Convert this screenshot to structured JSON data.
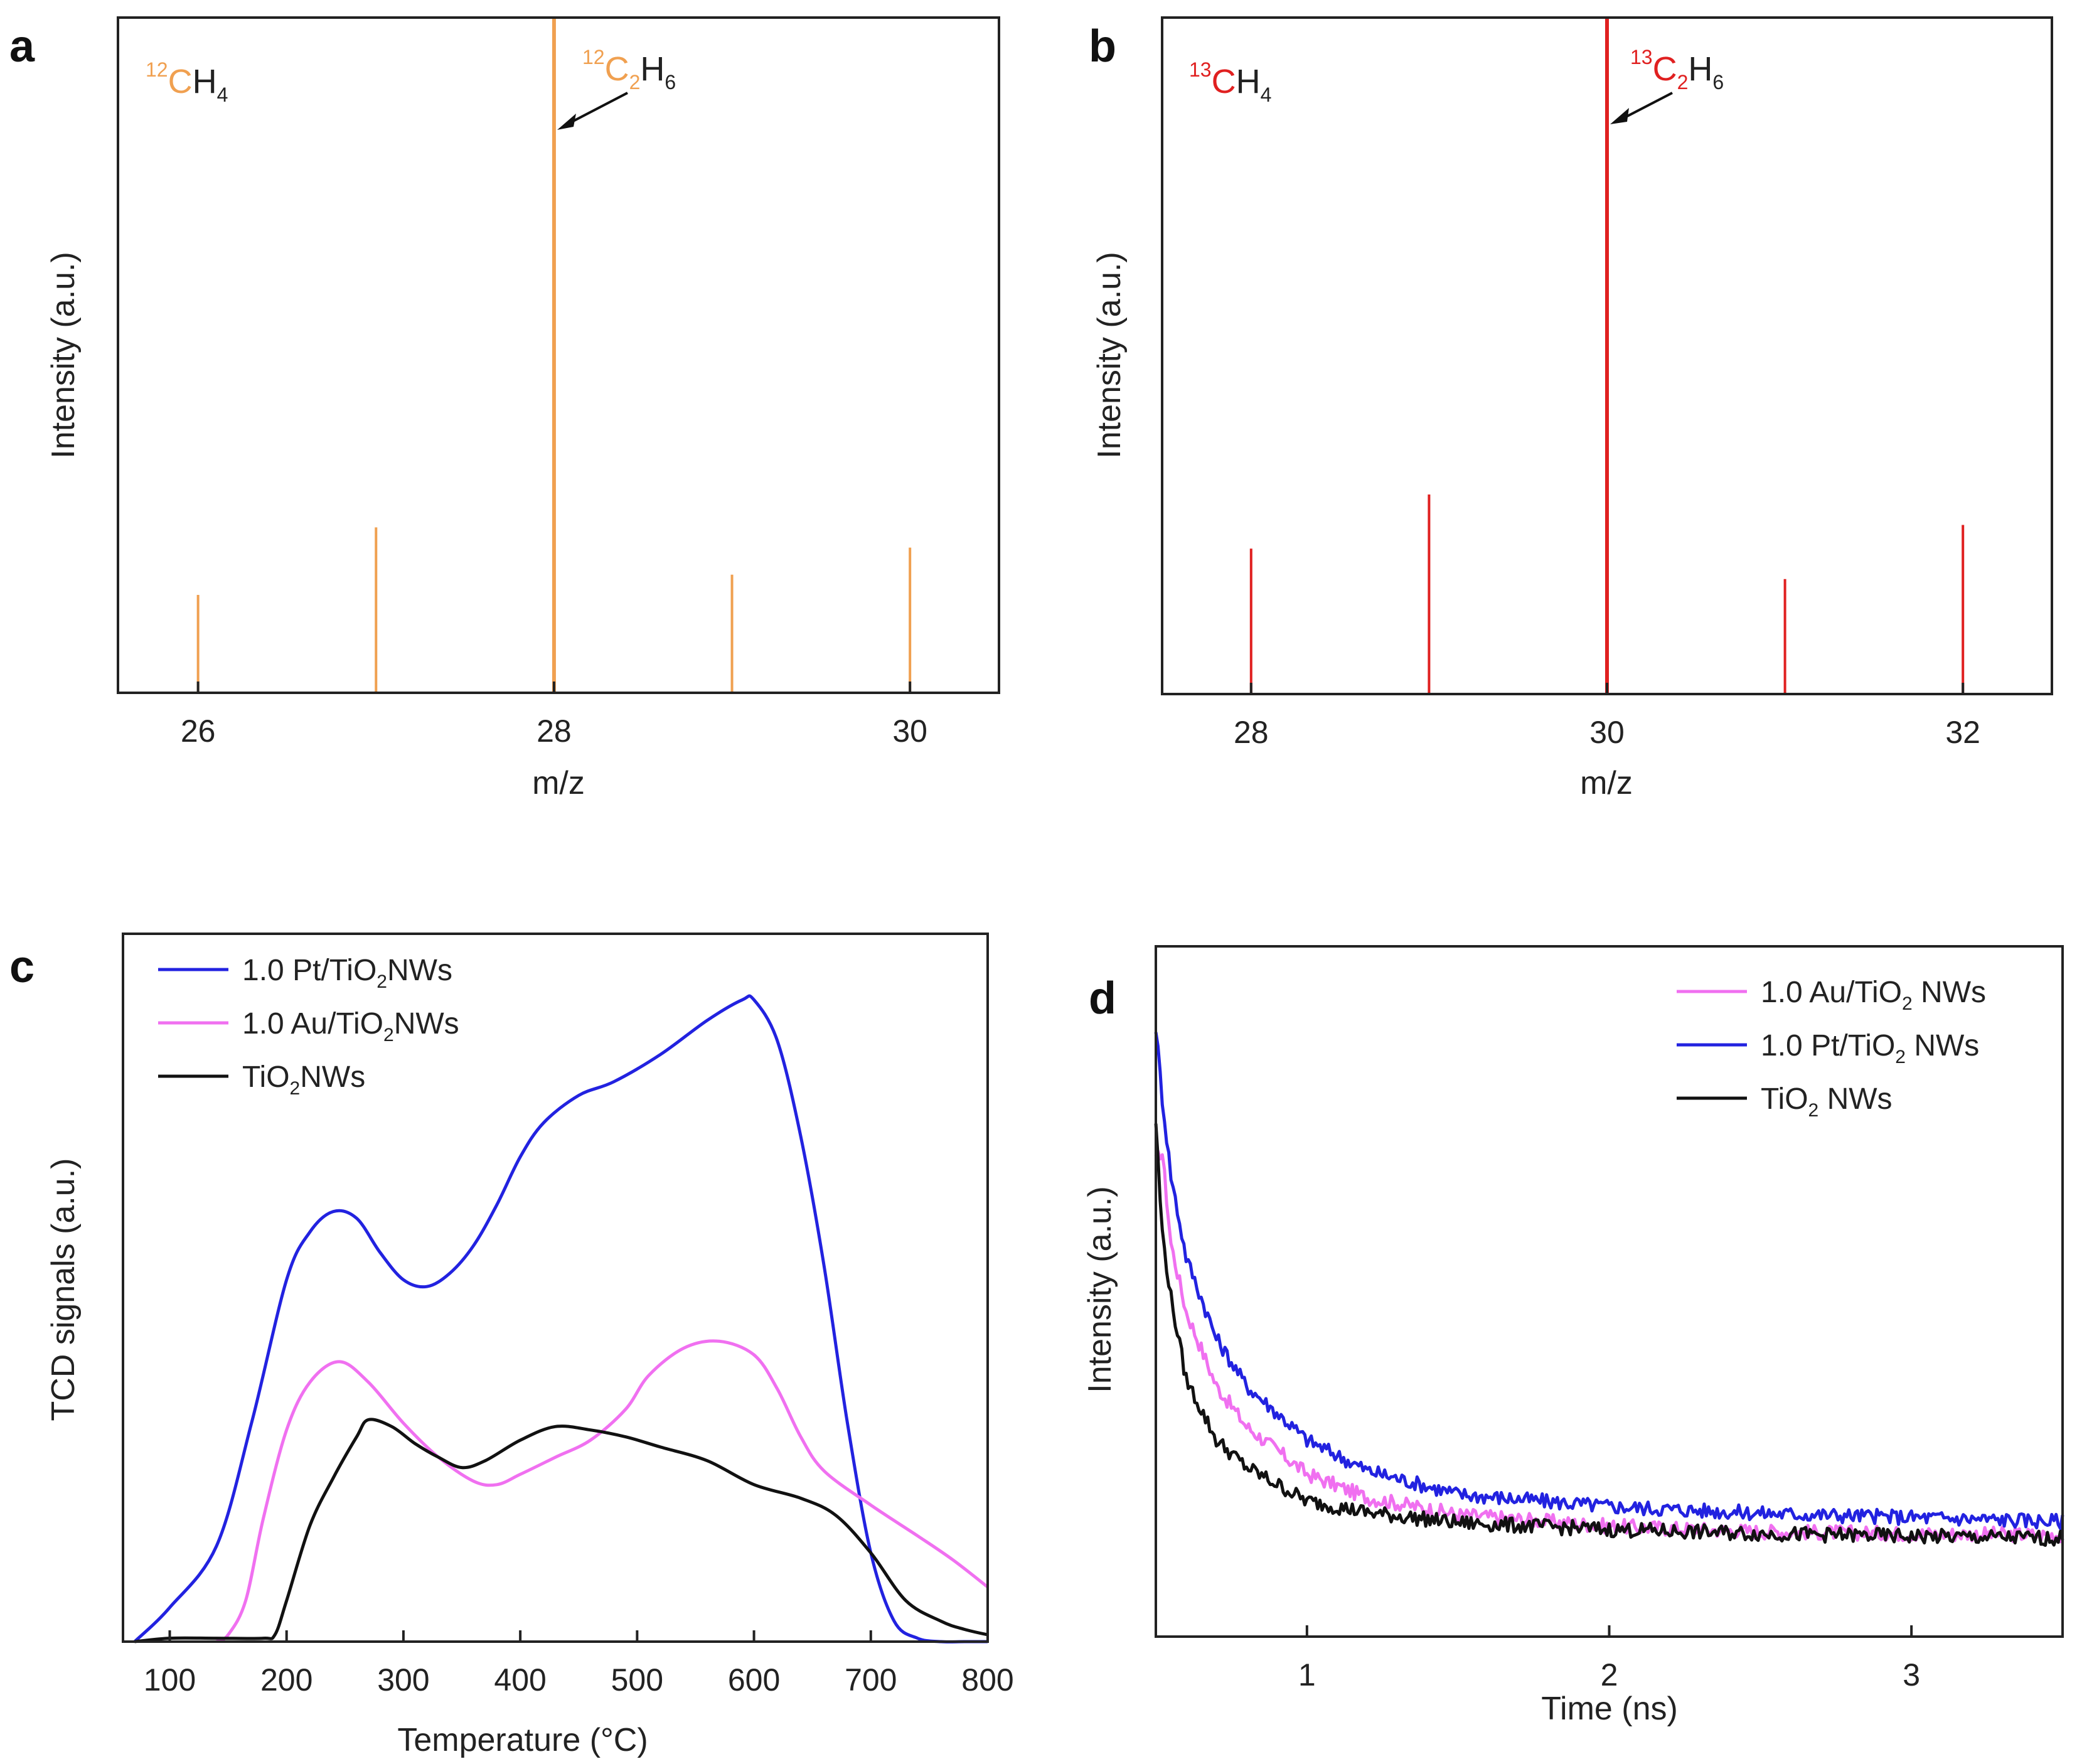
{
  "chart_data": [
    {
      "panel": "a",
      "type": "bar",
      "xlabel": "m/z",
      "ylabel": "Intensity (a.u.)",
      "xlim": [
        25.55,
        30.5
      ],
      "ylim": [
        0,
        100
      ],
      "xticks": [
        26,
        28,
        30
      ],
      "x": [
        26,
        27,
        28,
        29,
        30
      ],
      "values": [
        14.5,
        24.5,
        100,
        17.5,
        21.5
      ],
      "color": "#f0a050",
      "annotations": [
        {
          "id": "ch4",
          "isotope": "12",
          "base": "CH",
          "subscript": "4",
          "x": 26,
          "y": 90,
          "color_part": "12C"
        },
        {
          "id": "c2h6",
          "isotope": "12",
          "base": "C",
          "sub1": "2",
          "tail": "H",
          "sub2": "6",
          "arrow_to": [
            28,
            83
          ]
        }
      ]
    },
    {
      "panel": "b",
      "type": "bar",
      "xlabel": "m/z",
      "ylabel": "Intensity (a.u.)",
      "xlim": [
        27.5,
        32.5
      ],
      "ylim": [
        0,
        100
      ],
      "xticks": [
        28,
        30,
        32
      ],
      "x": [
        28,
        29,
        30,
        31,
        32
      ],
      "values": [
        21.5,
        29.5,
        100,
        17,
        25
      ],
      "color": "#e02020",
      "annotations": [
        {
          "id": "ch4",
          "isotope": "13",
          "base": "CH",
          "subscript": "4"
        },
        {
          "id": "c2h6",
          "isotope": "13",
          "base": "C",
          "sub1": "2",
          "tail": "H",
          "sub2": "6",
          "arrow_to": [
            30,
            84
          ]
        }
      ]
    },
    {
      "panel": "c",
      "type": "line",
      "xlabel": "Temperature (°C)",
      "ylabel": "TCD signals (a.u.)",
      "xlim": [
        60,
        800
      ],
      "ylim": [
        0,
        100
      ],
      "xticks": [
        100,
        200,
        300,
        400,
        500,
        600,
        700,
        800
      ],
      "legend_position": "top-left",
      "series": [
        {
          "name": "1.0 Pt/TiO2NWs",
          "base": "1.0 Pt/TiO",
          "sub": "2",
          "tail": "NWs",
          "color": "#2222e0",
          "x": [
            70,
            100,
            140,
            170,
            200,
            220,
            240,
            260,
            280,
            300,
            320,
            340,
            360,
            380,
            400,
            420,
            450,
            480,
            520,
            560,
            590,
            600,
            620,
            640,
            660,
            680,
            700,
            720,
            740,
            760,
            780,
            800
          ],
          "y": [
            0,
            5,
            14,
            32,
            53,
            60,
            63,
            62,
            57,
            53,
            52,
            54,
            58,
            64,
            71,
            76,
            80,
            82,
            86,
            91,
            94,
            94,
            88,
            74,
            55,
            32,
            13,
            3,
            0.5,
            0,
            0,
            0
          ]
        },
        {
          "name": "1.0 Au/TiO2NWs",
          "base": "1.0 Au/TiO",
          "sub": "2",
          "tail": "NWs",
          "color": "#f070f0",
          "x": [
            140,
            150,
            165,
            180,
            200,
            220,
            245,
            270,
            300,
            330,
            360,
            380,
            400,
            430,
            460,
            490,
            510,
            540,
            570,
            600,
            620,
            640,
            660,
            700,
            740,
            770,
            800
          ],
          "y": [
            0,
            1,
            6,
            18,
            31,
            38,
            41,
            38,
            32,
            27,
            23.5,
            23,
            24.5,
            27,
            29.5,
            34,
            39,
            43,
            44,
            42,
            37,
            30,
            25,
            20,
            15.5,
            12,
            8
          ]
        },
        {
          "name": "TiO2NWs",
          "base": "TiO",
          "sub": "2",
          "tail": "NWs",
          "color": "#111111",
          "x": [
            70,
            100,
            140,
            180,
            190,
            200,
            220,
            240,
            260,
            270,
            290,
            310,
            330,
            350,
            370,
            400,
            430,
            460,
            490,
            520,
            560,
            600,
            640,
            670,
            700,
            730,
            760,
            780,
            800
          ],
          "y": [
            0,
            0.5,
            0.5,
            0.5,
            1,
            6,
            17,
            24,
            30,
            32.5,
            31.5,
            29,
            27,
            25.5,
            26.5,
            29.5,
            31.5,
            31,
            30,
            28.5,
            26.5,
            23,
            21,
            18.5,
            13,
            6,
            3,
            1.8,
            1
          ]
        }
      ]
    },
    {
      "panel": "d",
      "type": "line",
      "xlabel": "Time (ns)",
      "ylabel": "Intensity (a.u.)",
      "xlim": [
        0.5,
        3.5
      ],
      "ylim": [
        0,
        100
      ],
      "xticks": [
        1,
        2,
        3
      ],
      "legend_position": "top-right",
      "series": [
        {
          "name": "1.0 Au/TiO2 NWs",
          "base": "1.0 Au/TiO",
          "sub": "2",
          "tail": " NWs",
          "color": "#f070f0",
          "x": [
            0.5,
            0.52,
            0.55,
            0.6,
            0.7,
            0.8,
            1.0,
            1.2,
            1.5,
            2.0,
            2.5,
            3.0,
            3.5
          ],
          "y": [
            70,
            72,
            58,
            48,
            37,
            31,
            24,
            20.5,
            18,
            16.3,
            15.5,
            15.2,
            15
          ]
        },
        {
          "name": "1.0 Pt/TiO2 NWs",
          "base": "1.0 Pt/TiO",
          "sub": "2",
          "tail": " NWs",
          "color": "#2222e0",
          "x": [
            0.5,
            0.52,
            0.55,
            0.6,
            0.7,
            0.8,
            1.0,
            1.2,
            1.5,
            2.0,
            2.5,
            3.0,
            3.5
          ],
          "y": [
            90,
            80,
            68,
            56,
            44,
            37,
            29,
            24.5,
            21,
            19.2,
            18.2,
            17.6,
            17
          ]
        },
        {
          "name": "TiO2 NWs",
          "base": "TiO",
          "sub": "2",
          "tail": " NWs",
          "color": "#111111",
          "x": [
            0.5,
            0.52,
            0.55,
            0.6,
            0.7,
            0.8,
            1.0,
            1.2,
            1.5,
            2.0,
            2.5,
            3.0,
            3.5
          ],
          "y": [
            76,
            60,
            50,
            38,
            29,
            25,
            20,
            18.3,
            16.8,
            15.8,
            15.2,
            14.8,
            14.5
          ]
        }
      ]
    }
  ]
}
